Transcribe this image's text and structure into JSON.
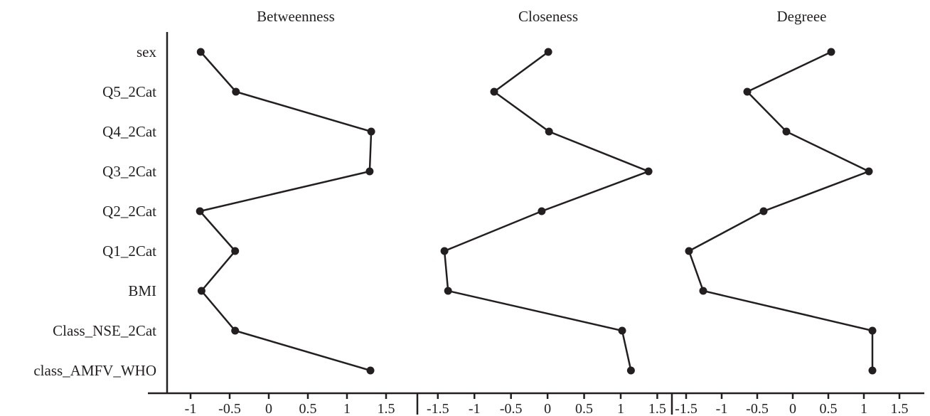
{
  "chart_data": {
    "type": "line",
    "categories": [
      "sex",
      "Q5_2Cat",
      "Q4_2Cat",
      "Q3_2Cat",
      "Q2_2Cat",
      "Q1_2Cat",
      "BMI",
      "Class_NSE_2Cat",
      "class_AMFV_WHO"
    ],
    "panels": [
      {
        "title": "Betweenness",
        "xlim": [
          -1.3,
          1.9
        ],
        "ticks": [
          -1,
          -0.5,
          0,
          0.5,
          1,
          1.5
        ],
        "tick_labels": [
          "-1",
          "-0.5",
          "0",
          "0.5",
          "1",
          "1.5"
        ],
        "values": [
          -0.87,
          -0.42,
          1.31,
          1.29,
          -0.88,
          -0.43,
          -0.86,
          -0.43,
          1.3
        ]
      },
      {
        "title": "Closeness",
        "xlim": [
          -1.78,
          1.7
        ],
        "ticks": [
          -1.5,
          -1,
          -0.5,
          0,
          0.5,
          1,
          1.5
        ],
        "tick_labels": [
          "-1.5",
          "-1",
          "-0.5",
          "0",
          "0.5",
          "1",
          "1.5"
        ],
        "values": [
          0.01,
          -0.73,
          0.02,
          1.38,
          -0.08,
          -1.41,
          -1.36,
          1.02,
          1.14
        ]
      },
      {
        "title": "Degreee",
        "xlim": [
          -1.7,
          1.85
        ],
        "ticks": [
          -1.5,
          -1,
          -0.5,
          0,
          0.5,
          1,
          1.5
        ],
        "tick_labels": [
          "-1.5",
          "-1",
          "-0.5",
          "0",
          "0.5",
          "1",
          "1.5"
        ],
        "values": [
          0.54,
          -0.64,
          -0.09,
          1.07,
          -0.41,
          -1.46,
          -1.26,
          1.12,
          1.12
        ]
      }
    ],
    "grid": false,
    "legend": "none"
  }
}
